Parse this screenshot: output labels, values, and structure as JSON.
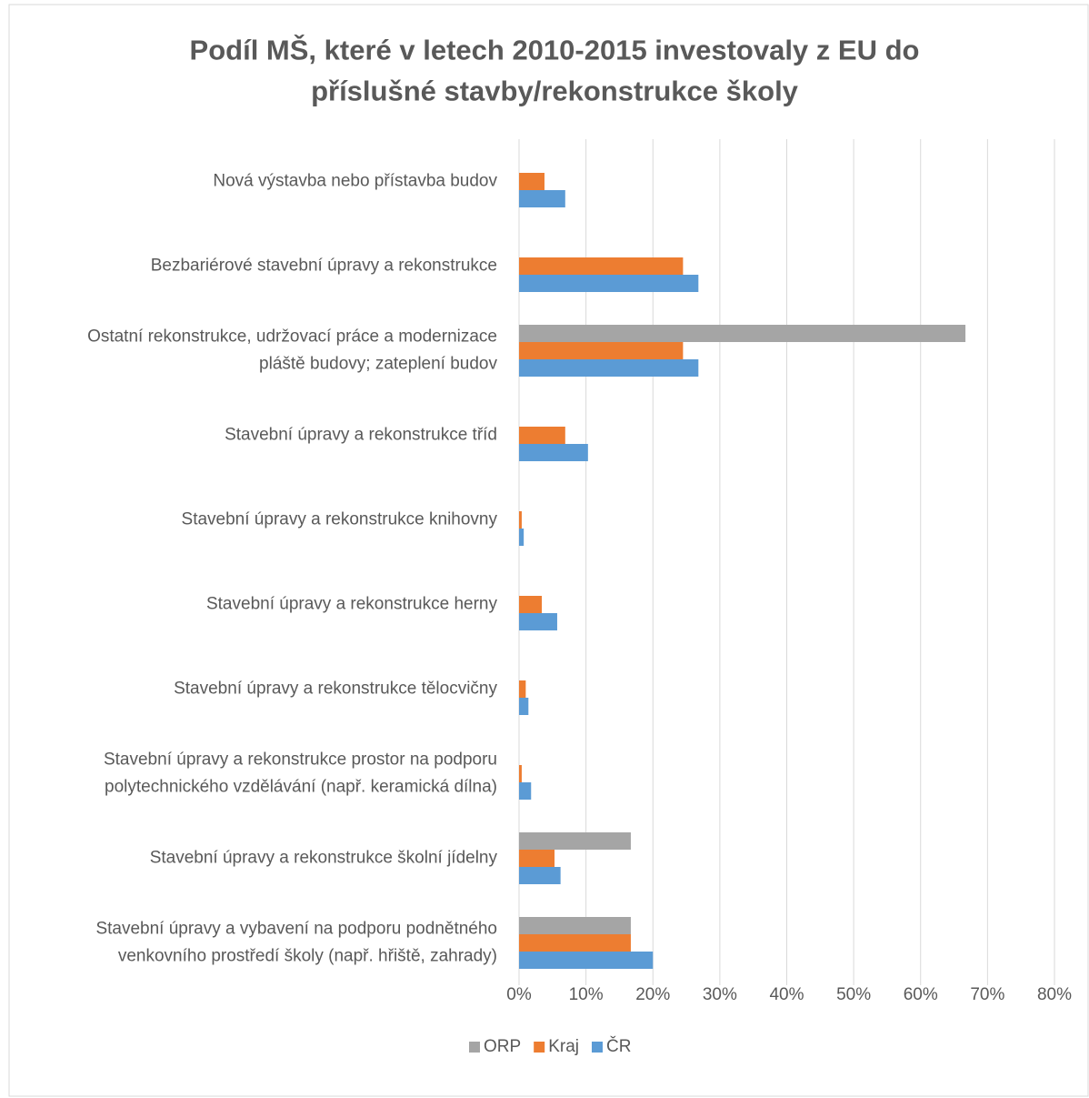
{
  "chart_data": {
    "type": "hbar",
    "title": "Podíl MŠ, které v letech 2010-2015 investovaly z EU do příslušné stavby/rekonstrukce školy",
    "categories": [
      "Nová výstavba nebo přístavba budov",
      "Bezbariérové stavební úpravy a rekonstrukce",
      "Ostatní rekonstrukce, udržovací práce a modernizace\npláště budovy; zateplení budov",
      "Stavební úpravy a rekonstrukce tříd",
      "Stavební úpravy a rekonstrukce knihovny",
      "Stavební úpravy a rekonstrukce herny",
      "Stavební úpravy a rekonstrukce tělocvičny",
      "Stavební úpravy a rekonstrukce prostor na podporu\npolytechnického vzdělávání (např. keramická dílna)",
      "Stavební úpravy a rekonstrukce školní jídelny",
      "Stavební úpravy a vybavení na podporu podnětného\nvenkovního prostředí školy (např. hřiště, zahrady)"
    ],
    "series": [
      {
        "name": "ORP",
        "color": "#a5a5a5",
        "values": [
          0,
          0,
          66.7,
          0,
          0,
          0,
          0,
          0,
          16.7,
          16.7
        ]
      },
      {
        "name": "Kraj",
        "color": "#ed7d31",
        "values": [
          3.8,
          24.5,
          24.5,
          6.9,
          0.4,
          3.4,
          1.0,
          0.4,
          5.3,
          16.7
        ]
      },
      {
        "name": "ČR",
        "color": "#5b9bd5",
        "values": [
          6.9,
          26.8,
          26.8,
          10.3,
          0.7,
          5.7,
          1.4,
          1.8,
          6.2,
          20.0
        ]
      }
    ],
    "xlim": [
      0,
      80
    ],
    "xticks": [
      {
        "value": 0,
        "label": "0%"
      },
      {
        "value": 10,
        "label": "10%"
      },
      {
        "value": 20,
        "label": "20%"
      },
      {
        "value": 30,
        "label": "30%"
      },
      {
        "value": 40,
        "label": "40%"
      },
      {
        "value": 50,
        "label": "50%"
      },
      {
        "value": 60,
        "label": "60%"
      },
      {
        "value": 70,
        "label": "70%"
      },
      {
        "value": 80,
        "label": "80%"
      }
    ],
    "grid": true,
    "legend": "bottom"
  }
}
